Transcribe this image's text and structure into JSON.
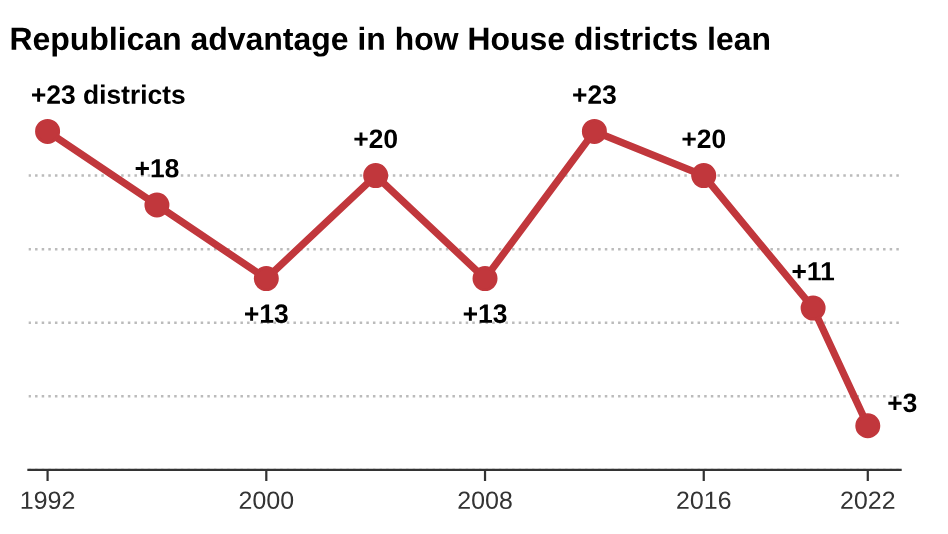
{
  "chart_data": {
    "type": "line",
    "title": "Republican advantage in how House districts lean",
    "x": [
      1992,
      1996,
      2000,
      2004,
      2008,
      2012,
      2016,
      2020,
      2022
    ],
    "series": [
      {
        "color": "#c1373c",
        "values": [
          23,
          18,
          13,
          20,
          13,
          23,
          20,
          11,
          3
        ],
        "value_labels": [
          "+23 districts",
          "+18",
          "+13",
          "+20",
          "+13",
          "+23",
          "+20",
          "+11",
          "+3"
        ]
      }
    ],
    "xlim": [
      1991.3,
      2023.2
    ],
    "xticks": [
      1992,
      2000,
      2008,
      2016,
      2022
    ],
    "yticks": [
      {
        "value": 0,
        "label": null
      },
      {
        "value": 5,
        "label": null
      },
      {
        "value": 10,
        "label": null
      },
      {
        "value": 15,
        "label": null
      },
      {
        "value": 20,
        "label": null
      }
    ],
    "grid": "y",
    "tick_labels": "x",
    "marker": "circle",
    "line_style": "solid",
    "legend": false
  }
}
